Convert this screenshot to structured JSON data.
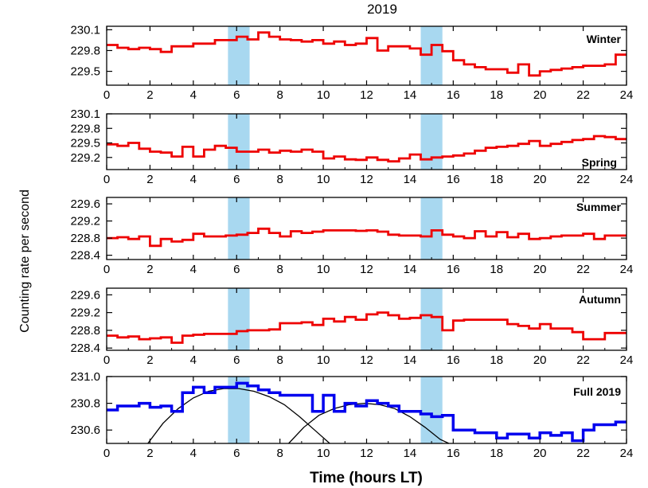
{
  "title": "2019",
  "xlabel": "Time (hours LT)",
  "ylabel": "Counting rate per second",
  "colors": {
    "seasonal": "#ee0000",
    "full": "#0000ee",
    "band": "#a8d8f0",
    "fit": "#000000"
  },
  "chart_data": [
    {
      "type": "line",
      "panel": "Winter",
      "xlim": [
        0,
        24
      ],
      "ylim": [
        229.3,
        230.15
      ],
      "yticks": [
        "230.1",
        "229.8",
        "229.5"
      ],
      "ytick_values": [
        230.1,
        229.8,
        229.5
      ],
      "xticks": [
        "0",
        "2",
        "4",
        "6",
        "8",
        "10",
        "12",
        "14",
        "16",
        "18",
        "20",
        "22",
        "24"
      ],
      "highlight_bands": [
        [
          5.6,
          6.6
        ],
        [
          14.5,
          15.5
        ]
      ],
      "series": [
        {
          "step": true,
          "x": [
            0,
            0.5,
            1,
            1.5,
            2,
            2.5,
            3,
            3.5,
            4,
            4.5,
            5,
            5.5,
            6,
            6.5,
            7,
            7.5,
            8,
            8.5,
            9,
            9.5,
            10,
            10.5,
            11,
            11.5,
            12,
            12.5,
            13,
            13.5,
            14,
            14.5,
            15,
            15.5,
            16,
            16.5,
            17,
            17.5,
            18,
            18.5,
            19,
            19.5,
            20,
            20.5,
            21,
            21.5,
            22,
            22.5,
            23,
            23.5
          ],
          "values": [
            229.88,
            229.84,
            229.82,
            229.84,
            229.82,
            229.78,
            229.86,
            229.86,
            229.9,
            229.9,
            229.95,
            229.95,
            230.0,
            229.96,
            230.06,
            230.0,
            229.96,
            229.95,
            229.93,
            229.95,
            229.9,
            229.93,
            229.88,
            229.9,
            229.98,
            229.8,
            229.86,
            229.86,
            229.83,
            229.74,
            229.88,
            229.79,
            229.66,
            229.6,
            229.56,
            229.53,
            229.53,
            229.48,
            229.6,
            229.44,
            229.5,
            229.52,
            229.54,
            229.56,
            229.58,
            229.58,
            229.6,
            229.74
          ]
        }
      ]
    },
    {
      "type": "line",
      "panel": "Spring",
      "xlim": [
        0,
        24
      ],
      "ylim": [
        228.95,
        230.1
      ],
      "yticks": [
        "230.1",
        "229.8",
        "229.5",
        "229.2"
      ],
      "ytick_values": [
        230.1,
        229.8,
        229.5,
        229.2
      ],
      "xticks": [
        "0",
        "2",
        "4",
        "6",
        "8",
        "10",
        "12",
        "14",
        "16",
        "18",
        "20",
        "22",
        "24"
      ],
      "highlight_bands": [
        [
          5.6,
          6.6
        ],
        [
          14.5,
          15.5
        ]
      ],
      "series": [
        {
          "step": true,
          "x": [
            0,
            0.5,
            1,
            1.5,
            2,
            2.5,
            3,
            3.5,
            4,
            4.5,
            5,
            5.5,
            6,
            6.5,
            7,
            7.5,
            8,
            8.5,
            9,
            9.5,
            10,
            10.5,
            11,
            11.5,
            12,
            12.5,
            13,
            13.5,
            14,
            14.5,
            15,
            15.5,
            16,
            16.5,
            17,
            17.5,
            18,
            18.5,
            19,
            19.5,
            20,
            20.5,
            21,
            21.5,
            22,
            22.5,
            23,
            23.5
          ],
          "values": [
            229.47,
            229.44,
            229.5,
            229.38,
            229.32,
            229.3,
            229.22,
            229.42,
            229.22,
            229.36,
            229.44,
            229.4,
            229.32,
            229.32,
            229.36,
            229.3,
            229.34,
            229.32,
            229.36,
            229.32,
            229.18,
            229.22,
            229.16,
            229.15,
            229.2,
            229.15,
            229.12,
            229.18,
            229.26,
            229.16,
            229.2,
            229.22,
            229.24,
            229.28,
            229.34,
            229.4,
            229.42,
            229.44,
            229.48,
            229.54,
            229.44,
            229.48,
            229.52,
            229.56,
            229.58,
            229.64,
            229.62,
            229.58
          ]
        }
      ]
    },
    {
      "type": "line",
      "panel": "Summer",
      "xlim": [
        0,
        24
      ],
      "ylim": [
        228.3,
        229.75
      ],
      "yticks": [
        "229.6",
        "229.2",
        "228.8",
        "228.4"
      ],
      "ytick_values": [
        229.6,
        229.2,
        228.8,
        228.4
      ],
      "xticks": [
        "0",
        "2",
        "4",
        "6",
        "8",
        "10",
        "12",
        "14",
        "16",
        "18",
        "20",
        "22",
        "24"
      ],
      "highlight_bands": [
        [
          5.6,
          6.6
        ],
        [
          14.5,
          15.5
        ]
      ],
      "series": [
        {
          "step": true,
          "x": [
            0,
            0.5,
            1,
            1.5,
            2,
            2.5,
            3,
            3.5,
            4,
            4.5,
            5,
            5.5,
            6,
            6.5,
            7,
            7.5,
            8,
            8.5,
            9,
            9.5,
            10,
            10.5,
            11,
            11.5,
            12,
            12.5,
            13,
            13.5,
            14,
            14.5,
            15,
            15.5,
            16,
            16.5,
            17,
            17.5,
            18,
            18.5,
            19,
            19.5,
            20,
            20.5,
            21,
            21.5,
            22,
            22.5,
            23,
            23.5
          ],
          "values": [
            228.8,
            228.82,
            228.78,
            228.84,
            228.62,
            228.78,
            228.72,
            228.76,
            228.9,
            228.84,
            228.84,
            228.86,
            228.88,
            228.92,
            229.02,
            228.92,
            228.84,
            228.96,
            228.92,
            228.95,
            228.98,
            228.98,
            228.98,
            228.97,
            228.98,
            228.95,
            228.88,
            228.86,
            228.86,
            228.84,
            228.98,
            228.88,
            228.84,
            228.8,
            228.96,
            228.84,
            228.94,
            228.82,
            228.9,
            228.78,
            228.8,
            228.84,
            228.86,
            228.86,
            228.9,
            228.78,
            228.86,
            228.86
          ]
        }
      ]
    },
    {
      "type": "line",
      "panel": "Autumn",
      "xlim": [
        0,
        24
      ],
      "ylim": [
        228.35,
        229.75
      ],
      "yticks": [
        "229.6",
        "229.2",
        "228.8",
        "228.4"
      ],
      "ytick_values": [
        229.6,
        229.2,
        228.8,
        228.4
      ],
      "xticks": [
        "0",
        "2",
        "4",
        "6",
        "8",
        "10",
        "12",
        "14",
        "16",
        "18",
        "20",
        "22",
        "24"
      ],
      "highlight_bands": [
        [
          5.6,
          6.6
        ],
        [
          14.5,
          15.5
        ]
      ],
      "series": [
        {
          "step": true,
          "x": [
            0,
            0.5,
            1,
            1.5,
            2,
            2.5,
            3,
            3.5,
            4,
            4.5,
            5,
            5.5,
            6,
            6.5,
            7,
            7.5,
            8,
            8.5,
            9,
            9.5,
            10,
            10.5,
            11,
            11.5,
            12,
            12.5,
            13,
            13.5,
            14,
            14.5,
            15,
            15.5,
            16,
            16.5,
            17,
            17.5,
            18,
            18.5,
            19,
            19.5,
            20,
            20.5,
            21,
            21.5,
            22,
            22.5,
            23,
            23.5
          ],
          "values": [
            228.68,
            228.64,
            228.66,
            228.6,
            228.62,
            228.64,
            228.52,
            228.68,
            228.7,
            228.72,
            228.72,
            228.72,
            228.78,
            228.8,
            228.8,
            228.82,
            228.96,
            228.96,
            228.98,
            228.92,
            229.06,
            229.0,
            229.1,
            229.04,
            229.16,
            229.2,
            229.14,
            229.06,
            229.08,
            229.14,
            229.1,
            228.8,
            229.02,
            229.04,
            229.04,
            229.04,
            229.04,
            228.94,
            228.9,
            228.84,
            228.94,
            228.84,
            228.84,
            228.76,
            228.6,
            228.6,
            228.74,
            228.74
          ]
        }
      ]
    },
    {
      "type": "line",
      "panel": "Full 2019",
      "xlim": [
        0,
        24
      ],
      "ylim": [
        230.5,
        231.0
      ],
      "yticks": [
        "231.0",
        "230.8",
        "230.6"
      ],
      "ytick_values": [
        231.0,
        230.8,
        230.6
      ],
      "xticks": [
        "0",
        "2",
        "4",
        "6",
        "8",
        "10",
        "12",
        "14",
        "16",
        "18",
        "20",
        "22",
        "24"
      ],
      "highlight_bands": [
        [
          5.6,
          6.6
        ],
        [
          14.5,
          15.5
        ]
      ],
      "series": [
        {
          "step": true,
          "x": [
            0,
            0.5,
            1,
            1.5,
            2,
            2.5,
            3,
            3.5,
            4,
            4.5,
            5,
            5.5,
            6,
            6.5,
            7,
            7.5,
            8,
            8.5,
            9,
            9.5,
            10,
            10.5,
            11,
            11.5,
            12,
            12.5,
            13,
            13.5,
            14,
            14.5,
            15,
            15.5,
            16,
            16.5,
            17,
            17.5,
            18,
            18.5,
            19,
            19.5,
            20,
            20.5,
            21,
            21.5,
            22,
            22.5,
            23,
            23.5
          ],
          "values": [
            230.75,
            230.78,
            230.78,
            230.8,
            230.77,
            230.78,
            230.74,
            230.88,
            230.92,
            230.88,
            230.92,
            230.92,
            230.95,
            230.93,
            230.9,
            230.88,
            230.86,
            230.86,
            230.86,
            230.74,
            230.86,
            230.74,
            230.8,
            230.78,
            230.82,
            230.8,
            230.78,
            230.74,
            230.74,
            230.72,
            230.7,
            230.71,
            230.6,
            230.6,
            230.58,
            230.58,
            230.54,
            230.57,
            230.57,
            230.54,
            230.58,
            230.56,
            230.58,
            230.52,
            230.6,
            230.64,
            230.64,
            230.66
          ]
        }
      ],
      "fit_curves": [
        {
          "x": [
            1.9,
            2.6,
            3.3,
            4.0,
            4.7,
            5.4,
            6.1,
            6.8,
            7.5,
            8.2,
            8.9,
            9.6,
            10.3
          ],
          "values": [
            230.5,
            230.65,
            230.76,
            230.84,
            230.89,
            230.91,
            230.91,
            230.89,
            230.85,
            230.79,
            230.7,
            230.6,
            230.47
          ]
        },
        {
          "x": [
            8.4,
            9.1,
            9.8,
            10.5,
            11.2,
            11.9,
            12.6,
            13.3,
            14.0,
            14.7,
            15.4,
            15.8
          ],
          "values": [
            230.5,
            230.62,
            230.71,
            230.76,
            230.79,
            230.8,
            230.79,
            230.76,
            230.7,
            230.62,
            230.53,
            230.47
          ]
        }
      ]
    }
  ]
}
